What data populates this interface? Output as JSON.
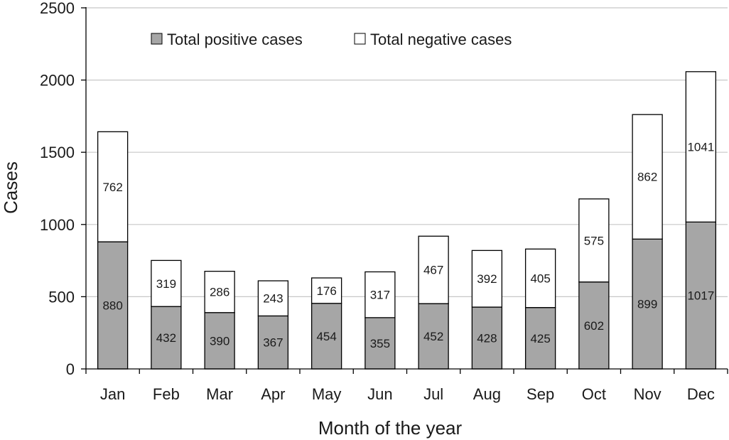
{
  "chart_data": {
    "type": "bar",
    "stacked": true,
    "title": "",
    "xlabel": "Month of the year",
    "ylabel": "Cases",
    "ylim": [
      0,
      2500
    ],
    "yticks": [
      0,
      500,
      1000,
      1500,
      2000,
      2500
    ],
    "grid": true,
    "legend_position": "top",
    "categories": [
      "Jan",
      "Feb",
      "Mar",
      "Apr",
      "May",
      "Jun",
      "Jul",
      "Aug",
      "Sep",
      "Oct",
      "Nov",
      "Dec"
    ],
    "series": [
      {
        "name": "Total positive cases",
        "color": "#a6a6a6",
        "values": [
          880,
          432,
          390,
          367,
          454,
          355,
          452,
          428,
          425,
          602,
          899,
          1017
        ]
      },
      {
        "name": "Total negative cases",
        "color": "#ffffff",
        "values": [
          762,
          319,
          286,
          243,
          176,
          317,
          467,
          392,
          405,
          575,
          862,
          1041
        ]
      }
    ]
  }
}
